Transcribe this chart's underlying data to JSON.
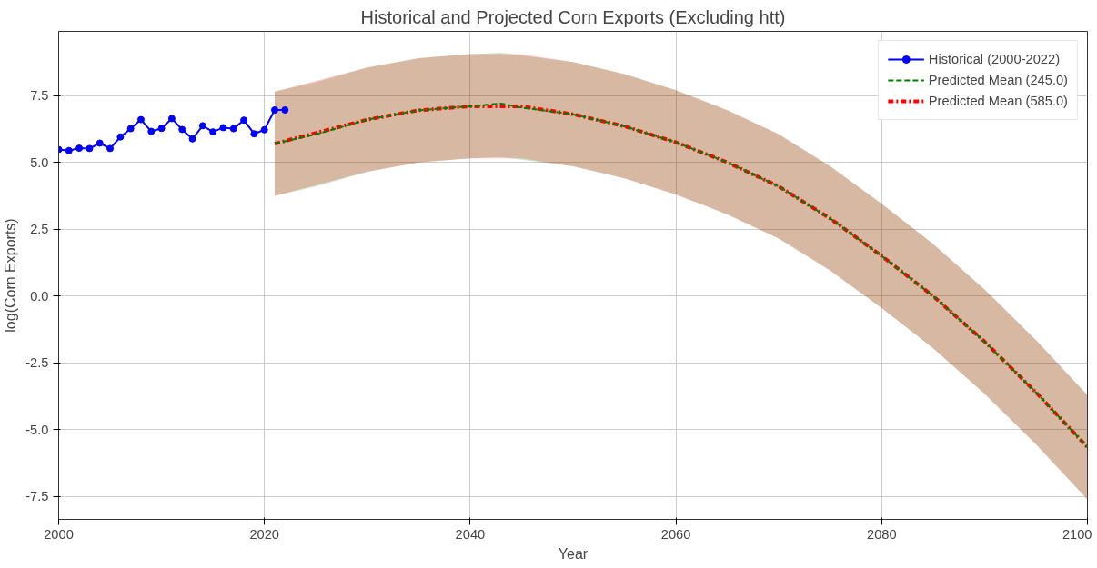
{
  "chart_data": {
    "type": "line",
    "title": "Historical and Projected Corn Exports (Excluding htt)",
    "xlabel": "Year",
    "ylabel": "log(Corn Exports)",
    "xlim": [
      2000,
      2100
    ],
    "xticks": [
      2000,
      2020,
      2040,
      2060,
      2080,
      2100
    ],
    "ylim": [
      -8.35,
      9.9
    ],
    "yticks": [
      -7.5,
      {
        "value": -5,
        "label": "-5.0"
      },
      -2.5,
      {
        "value": 0,
        "label": "0.0"
      },
      2.5,
      {
        "value": 5,
        "label": "5.0"
      },
      7.5
    ],
    "grid": true,
    "legend": "top right",
    "series": [
      {
        "name": "Historical (2000-2022)",
        "color": "#0000ff",
        "marker": "circle",
        "line_style": "solid",
        "x": [
          2000,
          2001,
          2002,
          2003,
          2004,
          2005,
          2006,
          2007,
          2008,
          2009,
          2010,
          2011,
          2012,
          2013,
          2014,
          2015,
          2016,
          2017,
          2018,
          2019,
          2020,
          2021,
          2022
        ],
        "values": [
          5.48,
          5.44,
          5.53,
          5.52,
          5.72,
          5.52,
          5.95,
          6.26,
          6.6,
          6.16,
          6.27,
          6.64,
          6.23,
          5.88,
          6.37,
          6.14,
          6.3,
          6.26,
          6.58,
          6.07,
          6.22,
          6.96,
          6.96
        ]
      },
      {
        "name": "Predicted Mean (245.0)",
        "color": "#008000",
        "marker": "none",
        "line_style": "dashed",
        "x": [
          2021,
          2025,
          2030,
          2035,
          2040,
          2043,
          2045,
          2050,
          2055,
          2060,
          2065,
          2070,
          2075,
          2080,
          2085,
          2090,
          2095,
          2100
        ],
        "values": [
          5.7,
          6.05,
          6.6,
          6.95,
          7.1,
          7.2,
          7.05,
          6.8,
          6.35,
          5.75,
          5.0,
          4.1,
          2.9,
          1.5,
          0.0,
          -1.7,
          -3.6,
          -5.65
        ],
        "lower": [
          3.75,
          4.1,
          4.65,
          5.0,
          5.15,
          5.2,
          5.1,
          4.85,
          4.4,
          3.8,
          3.05,
          2.15,
          0.95,
          -0.45,
          -1.95,
          -3.65,
          -5.55,
          -7.6
        ],
        "upper": [
          7.65,
          8.0,
          8.55,
          8.9,
          9.05,
          9.1,
          9.0,
          8.75,
          8.3,
          7.7,
          6.95,
          6.05,
          4.85,
          3.45,
          1.95,
          0.25,
          -1.65,
          -3.7
        ]
      },
      {
        "name": "Predicted Mean (585.0)",
        "color": "#ff0000",
        "marker": "none",
        "line_style": "dashdot",
        "x": [
          2021,
          2025,
          2030,
          2035,
          2040,
          2045,
          2050,
          2055,
          2060,
          2065,
          2070,
          2075,
          2080,
          2085,
          2090,
          2095,
          2100
        ],
        "values": [
          5.7,
          6.1,
          6.6,
          6.95,
          7.1,
          7.1,
          6.8,
          6.35,
          5.75,
          5.0,
          4.1,
          2.9,
          1.5,
          0.0,
          -1.7,
          -3.6,
          -5.65
        ],
        "lower": [
          3.75,
          4.15,
          4.65,
          5.0,
          5.15,
          5.15,
          4.85,
          4.4,
          3.8,
          3.05,
          2.15,
          0.95,
          -0.45,
          -1.95,
          -3.65,
          -5.55,
          -7.6
        ],
        "upper": [
          7.65,
          8.05,
          8.55,
          8.9,
          9.05,
          9.05,
          8.75,
          8.3,
          7.7,
          6.95,
          6.05,
          4.85,
          3.45,
          1.95,
          0.25,
          -1.65,
          -3.7
        ]
      }
    ]
  }
}
